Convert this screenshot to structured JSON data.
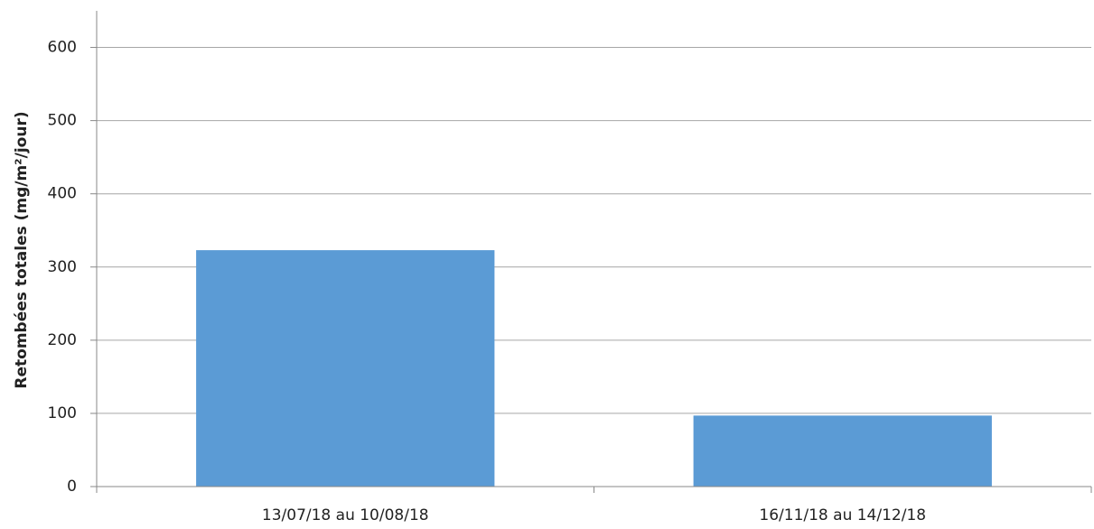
{
  "chart_data": {
    "type": "bar",
    "y_axis_label": "Retombées totales (mg/m²/jour)",
    "categories": [
      "13/07/18 au 10/08/18",
      "16/11/18 au 14/12/18"
    ],
    "values": [
      323,
      97
    ],
    "color": "#5b9bd5",
    "ylim": [
      0,
      650
    ],
    "yticks": [
      0,
      100,
      200,
      300,
      400,
      500,
      600
    ],
    "grid": true
  }
}
